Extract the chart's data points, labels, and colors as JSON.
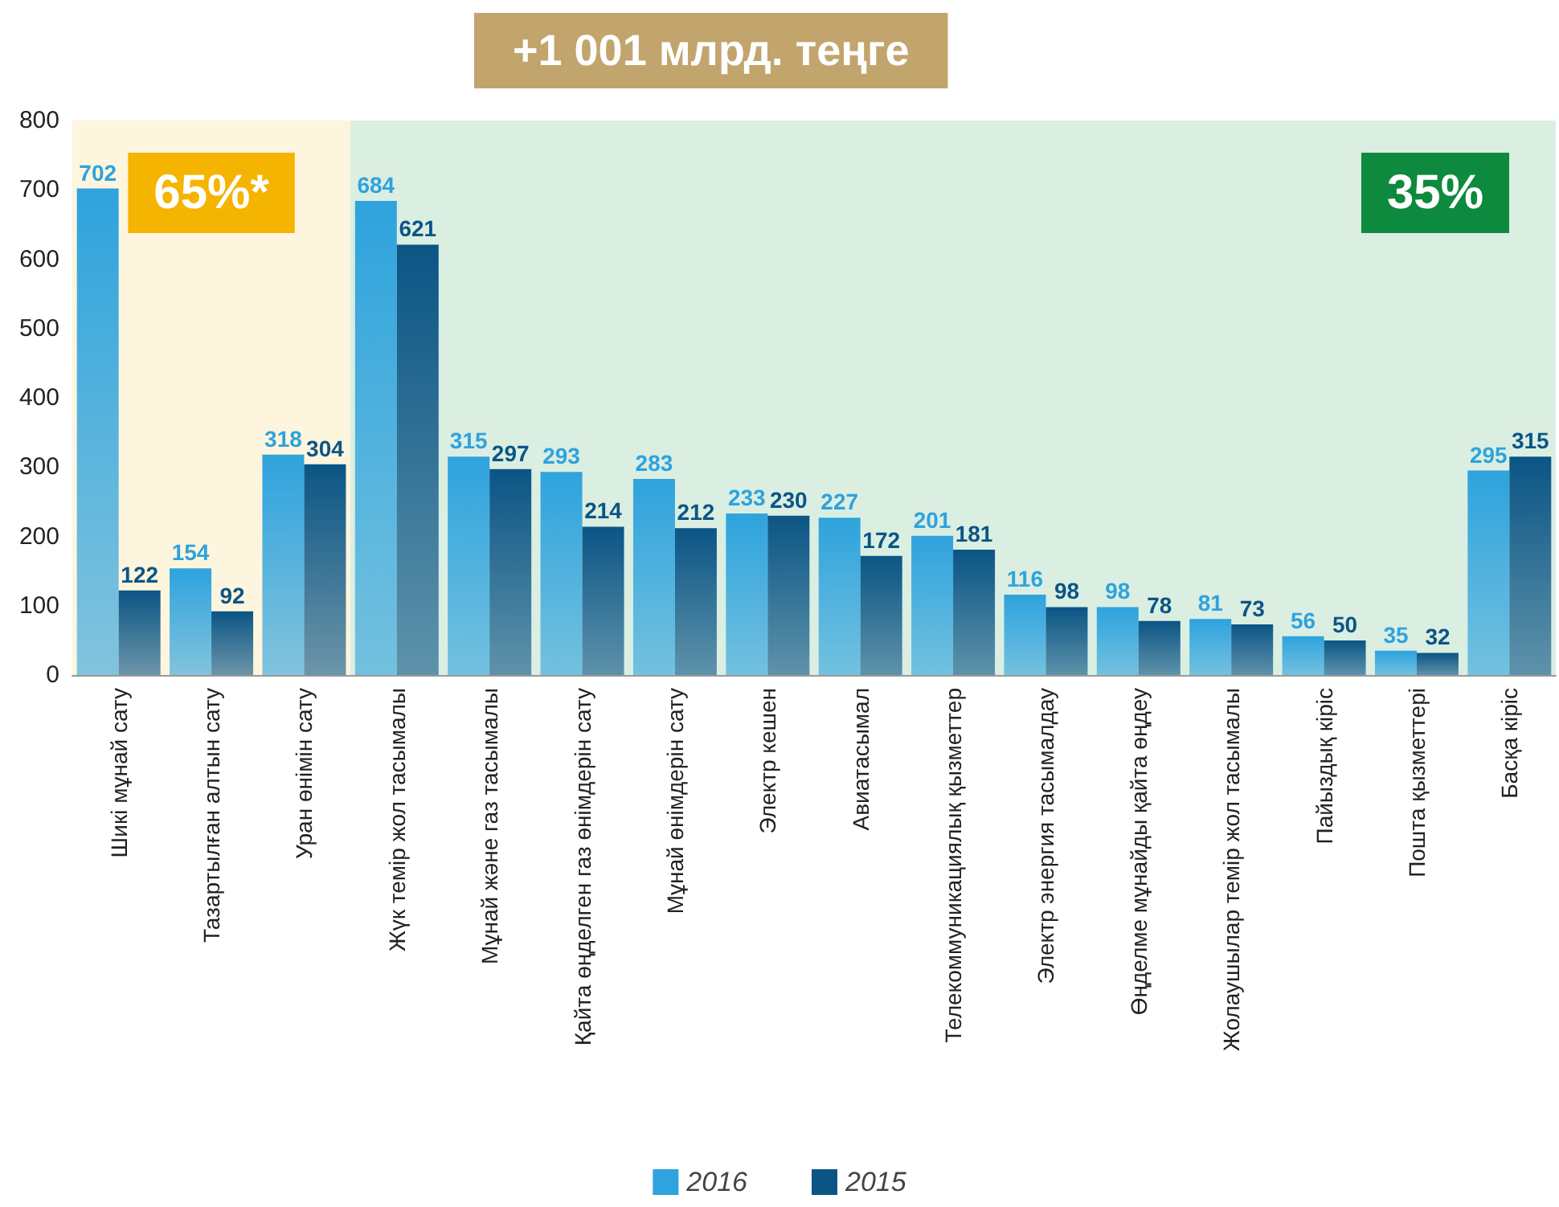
{
  "chart_data": {
    "type": "bar",
    "title": "+1 001 млрд. теңге",
    "categories": [
      "Шикі мұнай сату",
      "Тазартылған алтын сату",
      "Уран өнімін сату",
      "Жүк темір жол тасымалы",
      "Мұнай және газ тасымалы",
      "Қайта өңделген газ өнімдерін сату",
      "Мұнай өнімдерін сату",
      "Электр кешен",
      "Авиатасымал",
      "Телекоммуникациялық қызметтер",
      "Электр энергия тасымалдау",
      "Өңделме мұнайды қайта өңдеу",
      "Жолаушылар темір жол тасымалы",
      "Пайыздық кіріс",
      "Пошта қызметтері",
      "Басқа кіріс"
    ],
    "series": [
      {
        "name": "2016",
        "color": "#2ea3dd",
        "values": [
          702,
          154,
          318,
          684,
          315,
          293,
          283,
          233,
          227,
          201,
          116,
          98,
          81,
          56,
          35,
          295
        ]
      },
      {
        "name": "2015",
        "color": "#0b5585",
        "values": [
          122,
          92,
          304,
          621,
          297,
          214,
          212,
          230,
          172,
          181,
          98,
          78,
          73,
          50,
          32,
          315
        ]
      }
    ],
    "ylim": [
      0,
      800
    ],
    "yticks": [
      0,
      100,
      200,
      300,
      400,
      500,
      600,
      700,
      800
    ],
    "bands": [
      {
        "axis": "x",
        "from": "Шикі мұнай сату",
        "to": "Уран өнімін сату",
        "label": "65%*",
        "color": "#f5b400"
      },
      {
        "axis": "x",
        "from": "Жүк темір жол тасымалы",
        "to": "Басқа кіріс",
        "label": "35%",
        "color": "#0e8a3e"
      }
    ],
    "data_labels": true,
    "grid": false,
    "legend": "bottom"
  }
}
